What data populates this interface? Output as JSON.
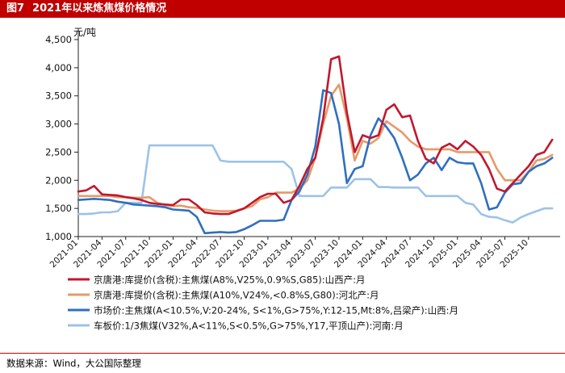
{
  "header": {
    "figure_label": "图7",
    "title": "2021年以来炼焦煤价格情况"
  },
  "source": "数据来源：Wind，大公国际整理",
  "chart_data": {
    "type": "line",
    "ylabel": "元/吨",
    "ylim": [
      1000,
      4500
    ],
    "yticks": [
      1000,
      1500,
      2000,
      2500,
      3000,
      3500,
      4000,
      4500
    ],
    "ytick_labels": [
      "1,000",
      "1,500",
      "2,000",
      "2,500",
      "3,000",
      "3,500",
      "4,000",
      "4,500"
    ],
    "xlim": [
      "2021-01",
      "2026-02"
    ],
    "xticks": [
      "2021-01",
      "2021-04",
      "2021-07",
      "2021-10",
      "2022-01",
      "2022-04",
      "2022-07",
      "2022-10",
      "2023-01",
      "2023-04",
      "2023-07",
      "2023-10",
      "2024-01",
      "2024-04",
      "2024-07",
      "2024-10",
      "2025-01",
      "2025-04",
      "2025-07",
      "2025-10"
    ],
    "series": [
      {
        "name": "京唐港:库提价(含税):主焦煤(A8%,V25%,0.9%S,G85):山西产:月",
        "color": "#c0182d",
        "points": [
          [
            "2021-01",
            1800
          ],
          [
            "2021-02",
            1820
          ],
          [
            "2021-03",
            1900
          ],
          [
            "2021-04",
            1750
          ],
          [
            "2021-05",
            1740
          ],
          [
            "2021-06",
            1730
          ],
          [
            "2021-07",
            1700
          ],
          [
            "2021-08",
            1680
          ],
          [
            "2021-09",
            1650
          ],
          [
            "2021-10",
            1600
          ],
          [
            "2021-11",
            1580
          ],
          [
            "2021-12",
            1570
          ],
          [
            "2022-01",
            1560
          ],
          [
            "2022-02",
            1660
          ],
          [
            "2022-03",
            1660
          ],
          [
            "2022-04",
            1560
          ],
          [
            "2022-05",
            1430
          ],
          [
            "2022-06",
            1410
          ],
          [
            "2022-07",
            1400
          ],
          [
            "2022-08",
            1400
          ],
          [
            "2022-09",
            1450
          ],
          [
            "2022-10",
            1500
          ],
          [
            "2022-11",
            1600
          ],
          [
            "2022-12",
            1700
          ],
          [
            "2023-01",
            1760
          ],
          [
            "2023-02",
            1760
          ],
          [
            "2023-03",
            1600
          ],
          [
            "2023-04",
            1650
          ],
          [
            "2023-05",
            1900
          ],
          [
            "2023-06",
            2200
          ],
          [
            "2023-07",
            2400
          ],
          [
            "2023-08",
            3100
          ],
          [
            "2023-09",
            4150
          ],
          [
            "2023-10",
            4200
          ],
          [
            "2023-11",
            3200
          ],
          [
            "2023-12",
            2500
          ],
          [
            "2024-01",
            2800
          ],
          [
            "2024-02",
            2750
          ],
          [
            "2024-03",
            2800
          ],
          [
            "2024-04",
            3250
          ],
          [
            "2024-05",
            3350
          ],
          [
            "2024-06",
            3120
          ],
          [
            "2024-07",
            3150
          ],
          [
            "2024-08",
            2700
          ],
          [
            "2024-09",
            2380
          ],
          [
            "2024-10",
            2300
          ],
          [
            "2024-11",
            2580
          ],
          [
            "2024-12",
            2650
          ],
          [
            "2025-01",
            2550
          ],
          [
            "2025-02",
            2700
          ],
          [
            "2025-03",
            2600
          ],
          [
            "2025-04",
            2450
          ],
          [
            "2025-05",
            2200
          ],
          [
            "2025-06",
            1850
          ],
          [
            "2025-07",
            1800
          ],
          [
            "2025-08",
            1950
          ],
          [
            "2025-09",
            2100
          ],
          [
            "2025-10",
            2250
          ],
          [
            "2025-11",
            2450
          ],
          [
            "2025-12",
            2500
          ],
          [
            "2026-01",
            2720
          ]
        ]
      },
      {
        "name": "京唐港:库提价(含税):主焦煤(A10%,V24%,<0.8%S,G80):河北产:月",
        "color": "#e8996a",
        "points": [
          [
            "2021-01",
            1720
          ],
          [
            "2021-02",
            1720
          ],
          [
            "2021-03",
            1720
          ],
          [
            "2021-04",
            1720
          ],
          [
            "2021-05",
            1720
          ],
          [
            "2021-06",
            1700
          ],
          [
            "2021-07",
            1700
          ],
          [
            "2021-08",
            1690
          ],
          [
            "2021-09",
            1690
          ],
          [
            "2021-10",
            1700
          ],
          [
            "2021-11",
            1600
          ],
          [
            "2021-12",
            1560
          ],
          [
            "2022-01",
            1540
          ],
          [
            "2022-02",
            1550
          ],
          [
            "2022-03",
            1520
          ],
          [
            "2022-04",
            1510
          ],
          [
            "2022-05",
            1480
          ],
          [
            "2022-06",
            1460
          ],
          [
            "2022-07",
            1450
          ],
          [
            "2022-08",
            1450
          ],
          [
            "2022-09",
            1460
          ],
          [
            "2022-10",
            1500
          ],
          [
            "2022-11",
            1540
          ],
          [
            "2022-12",
            1660
          ],
          [
            "2023-01",
            1700
          ],
          [
            "2023-02",
            1780
          ],
          [
            "2023-03",
            1780
          ],
          [
            "2023-04",
            1780
          ],
          [
            "2023-05",
            1850
          ],
          [
            "2023-06",
            2000
          ],
          [
            "2023-07",
            2400
          ],
          [
            "2023-08",
            3000
          ],
          [
            "2023-09",
            3500
          ],
          [
            "2023-10",
            3700
          ],
          [
            "2023-11",
            3100
          ],
          [
            "2023-12",
            2350
          ],
          [
            "2024-01",
            2700
          ],
          [
            "2024-02",
            2650
          ],
          [
            "2024-03",
            2750
          ],
          [
            "2024-04",
            3050
          ],
          [
            "2024-05",
            2950
          ],
          [
            "2024-06",
            2850
          ],
          [
            "2024-07",
            2700
          ],
          [
            "2024-08",
            2600
          ],
          [
            "2024-09",
            2550
          ],
          [
            "2024-10",
            2550
          ],
          [
            "2024-11",
            2550
          ],
          [
            "2024-12",
            2550
          ],
          [
            "2025-01",
            2500
          ],
          [
            "2025-02",
            2500
          ],
          [
            "2025-03",
            2500
          ],
          [
            "2025-04",
            2500
          ],
          [
            "2025-05",
            2500
          ],
          [
            "2025-06",
            2200
          ],
          [
            "2025-07",
            2000
          ],
          [
            "2025-08",
            2000
          ],
          [
            "2025-09",
            2000
          ],
          [
            "2025-10",
            2150
          ],
          [
            "2025-11",
            2350
          ],
          [
            "2025-12",
            2380
          ],
          [
            "2026-01",
            2450
          ]
        ]
      },
      {
        "name": "市场价:主焦煤(A<10.5%,V:20-24%, S<1%,G>75%,Y:12-15,Mt:8%,吕梁产):山西:月",
        "color": "#2f6fc0",
        "points": [
          [
            "2021-01",
            1650
          ],
          [
            "2021-02",
            1660
          ],
          [
            "2021-03",
            1670
          ],
          [
            "2021-04",
            1660
          ],
          [
            "2021-05",
            1650
          ],
          [
            "2021-06",
            1620
          ],
          [
            "2021-07",
            1600
          ],
          [
            "2021-08",
            1570
          ],
          [
            "2021-09",
            1560
          ],
          [
            "2021-10",
            1550
          ],
          [
            "2021-11",
            1540
          ],
          [
            "2021-12",
            1520
          ],
          [
            "2022-01",
            1480
          ],
          [
            "2022-02",
            1470
          ],
          [
            "2022-03",
            1460
          ],
          [
            "2022-04",
            1350
          ],
          [
            "2022-05",
            1060
          ],
          [
            "2022-06",
            1070
          ],
          [
            "2022-07",
            1080
          ],
          [
            "2022-08",
            1070
          ],
          [
            "2022-09",
            1080
          ],
          [
            "2022-10",
            1130
          ],
          [
            "2022-11",
            1200
          ],
          [
            "2022-12",
            1280
          ],
          [
            "2023-01",
            1280
          ],
          [
            "2023-02",
            1280
          ],
          [
            "2023-03",
            1300
          ],
          [
            "2023-04",
            1650
          ],
          [
            "2023-05",
            1800
          ],
          [
            "2023-06",
            2100
          ],
          [
            "2023-07",
            2600
          ],
          [
            "2023-08",
            3600
          ],
          [
            "2023-09",
            3550
          ],
          [
            "2023-10",
            3000
          ],
          [
            "2023-11",
            1950
          ],
          [
            "2023-12",
            2200
          ],
          [
            "2024-01",
            2250
          ],
          [
            "2024-02",
            2800
          ],
          [
            "2024-03",
            3100
          ],
          [
            "2024-04",
            2950
          ],
          [
            "2024-05",
            2750
          ],
          [
            "2024-06",
            2400
          ],
          [
            "2024-07",
            2000
          ],
          [
            "2024-08",
            2100
          ],
          [
            "2024-09",
            2300
          ],
          [
            "2024-10",
            2400
          ],
          [
            "2024-11",
            2180
          ],
          [
            "2024-12",
            2400
          ],
          [
            "2025-01",
            2320
          ],
          [
            "2025-02",
            2300
          ],
          [
            "2025-03",
            2300
          ],
          [
            "2025-04",
            1950
          ],
          [
            "2025-05",
            1480
          ],
          [
            "2025-06",
            1520
          ],
          [
            "2025-07",
            1780
          ],
          [
            "2025-08",
            1930
          ],
          [
            "2025-09",
            1950
          ],
          [
            "2025-10",
            2150
          ],
          [
            "2025-11",
            2250
          ],
          [
            "2025-12",
            2300
          ],
          [
            "2026-01",
            2400
          ]
        ]
      },
      {
        "name": "车板价:1/3焦煤(V32%,A<11%,S<0.5%,G>75%,Y17,平顶山产):河南:月",
        "color": "#9dc3e6",
        "points": [
          [
            "2021-01",
            1400
          ],
          [
            "2021-02",
            1400
          ],
          [
            "2021-03",
            1410
          ],
          [
            "2021-04",
            1430
          ],
          [
            "2021-05",
            1430
          ],
          [
            "2021-06",
            1450
          ],
          [
            "2021-07",
            1600
          ],
          [
            "2021-08",
            1600
          ],
          [
            "2021-09",
            1600
          ],
          [
            "2021-10",
            2620
          ],
          [
            "2021-11",
            2620
          ],
          [
            "2021-12",
            2620
          ],
          [
            "2022-01",
            2620
          ],
          [
            "2022-02",
            2620
          ],
          [
            "2022-03",
            2620
          ],
          [
            "2022-04",
            2620
          ],
          [
            "2022-05",
            2620
          ],
          [
            "2022-06",
            2620
          ],
          [
            "2022-07",
            2350
          ],
          [
            "2022-08",
            2330
          ],
          [
            "2022-09",
            2330
          ],
          [
            "2022-10",
            2330
          ],
          [
            "2022-11",
            2330
          ],
          [
            "2022-12",
            2330
          ],
          [
            "2023-01",
            2330
          ],
          [
            "2023-02",
            2330
          ],
          [
            "2023-03",
            2330
          ],
          [
            "2023-04",
            2200
          ],
          [
            "2023-05",
            1720
          ],
          [
            "2023-06",
            1720
          ],
          [
            "2023-07",
            1720
          ],
          [
            "2023-08",
            1720
          ],
          [
            "2023-09",
            1870
          ],
          [
            "2023-10",
            1870
          ],
          [
            "2023-11",
            1870
          ],
          [
            "2023-12",
            2020
          ],
          [
            "2024-01",
            2020
          ],
          [
            "2024-02",
            2020
          ],
          [
            "2024-03",
            1880
          ],
          [
            "2024-04",
            1880
          ],
          [
            "2024-05",
            1870
          ],
          [
            "2024-06",
            1870
          ],
          [
            "2024-07",
            1870
          ],
          [
            "2024-08",
            1870
          ],
          [
            "2024-09",
            1720
          ],
          [
            "2024-10",
            1720
          ],
          [
            "2024-11",
            1720
          ],
          [
            "2024-12",
            1720
          ],
          [
            "2025-01",
            1720
          ],
          [
            "2025-02",
            1600
          ],
          [
            "2025-03",
            1570
          ],
          [
            "2025-04",
            1400
          ],
          [
            "2025-05",
            1350
          ],
          [
            "2025-06",
            1340
          ],
          [
            "2025-07",
            1290
          ],
          [
            "2025-08",
            1250
          ],
          [
            "2025-09",
            1340
          ],
          [
            "2025-10",
            1400
          ],
          [
            "2025-11",
            1450
          ],
          [
            "2025-12",
            1500
          ],
          [
            "2026-01",
            1500
          ]
        ]
      }
    ]
  }
}
